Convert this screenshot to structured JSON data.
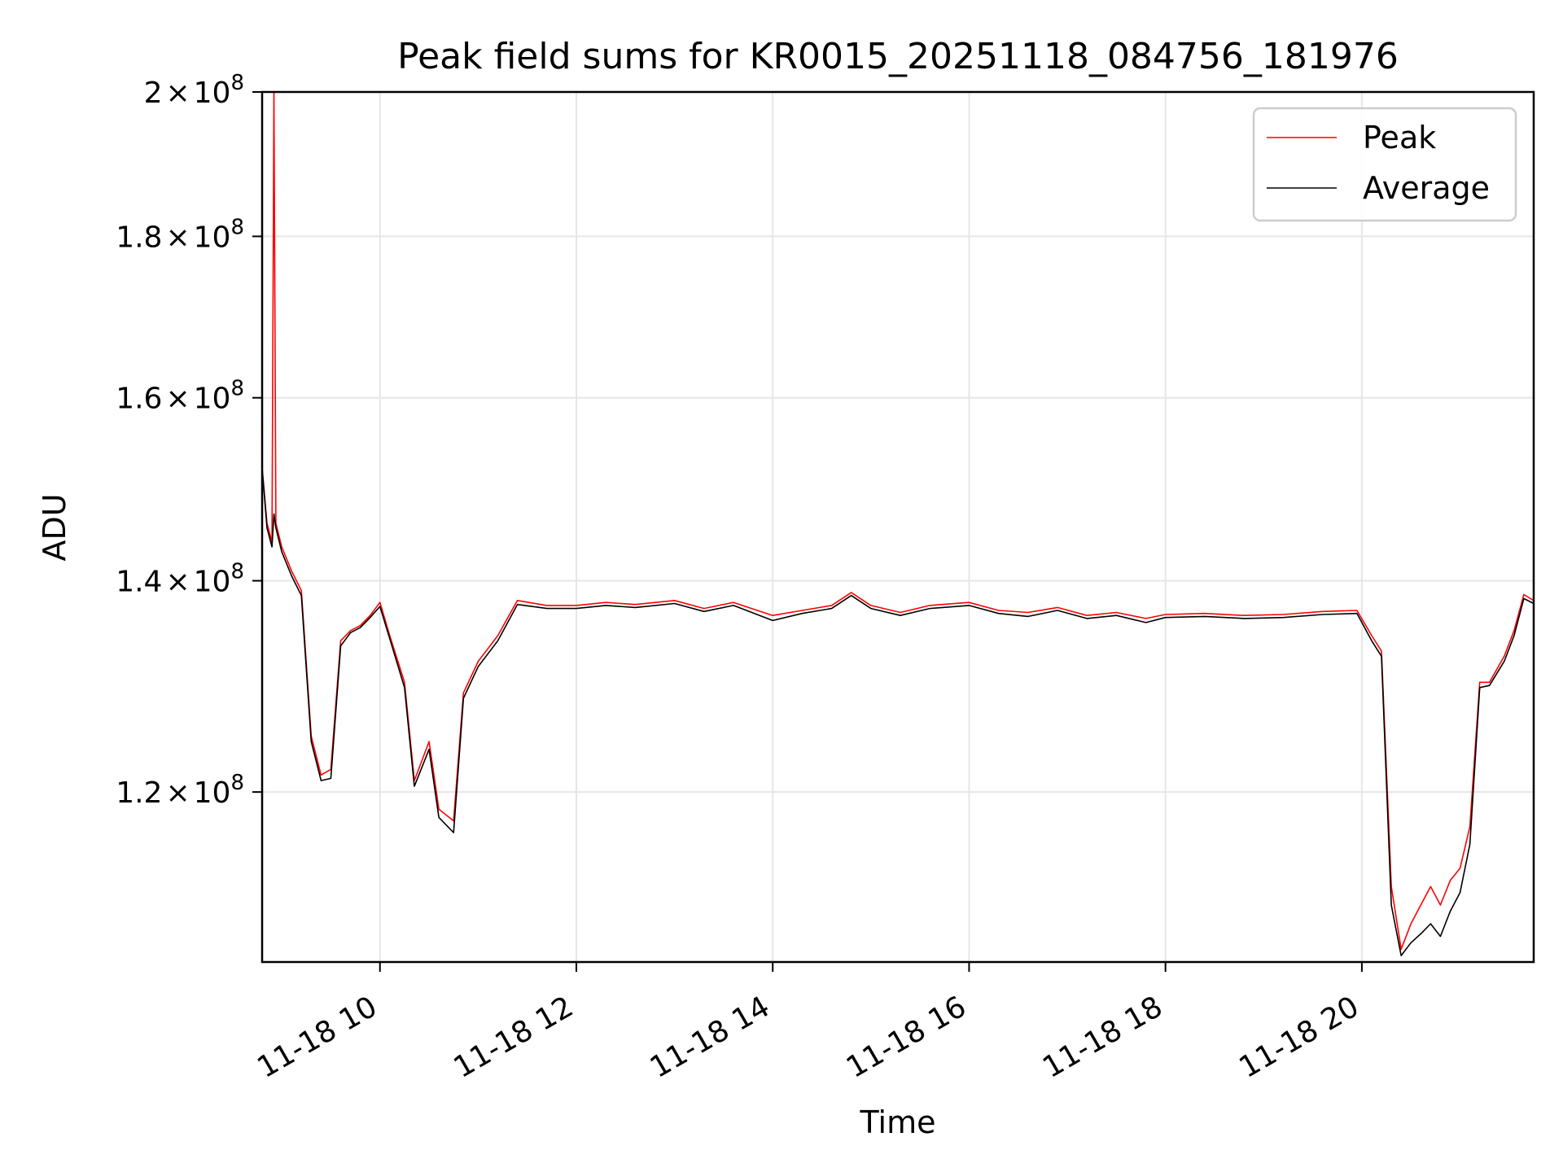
{
  "chart_data": {
    "type": "line",
    "title": "Peak field sums for KR0015_20251118_084756_181976",
    "xlabel": "Time",
    "ylabel": "ADU",
    "y_scale": "log",
    "xlim_hours": [
      8.8,
      21.75
    ],
    "ylim": [
      106000000,
      200000000
    ],
    "x_ticks": [
      {
        "value": 10,
        "label": "11-18 10"
      },
      {
        "value": 12,
        "label": "11-18 12"
      },
      {
        "value": 14,
        "label": "11-18 14"
      },
      {
        "value": 16,
        "label": "11-18 16"
      },
      {
        "value": 18,
        "label": "11-18 18"
      },
      {
        "value": 20,
        "label": "11-18 20"
      }
    ],
    "y_ticks": [
      {
        "value": 120000000,
        "mantissa": "1.2",
        "base": "10",
        "exp": "8"
      },
      {
        "value": 140000000,
        "mantissa": "1.4",
        "base": "10",
        "exp": "8"
      },
      {
        "value": 160000000,
        "mantissa": "1.6",
        "base": "10",
        "exp": "8"
      },
      {
        "value": 180000000,
        "mantissa": "1.8",
        "base": "10",
        "exp": "8"
      },
      {
        "value": 200000000,
        "mantissa": "2",
        "base": "10",
        "exp": "8"
      }
    ],
    "grid": true,
    "legend_position": "top-right",
    "series": [
      {
        "name": "Peak",
        "color": "#ff0000",
        "points": [
          [
            8.8,
            152000000
          ],
          [
            8.85,
            146000000
          ],
          [
            8.9,
            144000000
          ],
          [
            8.92,
            200000000
          ],
          [
            8.94,
            146000000
          ],
          [
            9.0,
            143500000
          ],
          [
            9.1,
            141000000
          ],
          [
            9.2,
            139000000
          ],
          [
            9.3,
            125000000
          ],
          [
            9.4,
            121500000
          ],
          [
            9.5,
            122000000
          ],
          [
            9.6,
            134000000
          ],
          [
            9.7,
            135000000
          ],
          [
            9.8,
            135500000
          ],
          [
            9.9,
            136500000
          ],
          [
            10.0,
            137800000
          ],
          [
            10.1,
            134500000
          ],
          [
            10.25,
            130000000
          ],
          [
            10.35,
            121000000
          ],
          [
            10.5,
            124500000
          ],
          [
            10.6,
            118500000
          ],
          [
            10.75,
            117500000
          ],
          [
            10.85,
            129000000
          ],
          [
            11.0,
            132000000
          ],
          [
            11.2,
            134500000
          ],
          [
            11.4,
            138000000
          ],
          [
            11.7,
            137500000
          ],
          [
            12.0,
            137500000
          ],
          [
            12.3,
            137800000
          ],
          [
            12.6,
            137600000
          ],
          [
            13.0,
            138000000
          ],
          [
            13.3,
            137200000
          ],
          [
            13.6,
            137800000
          ],
          [
            14.0,
            136500000
          ],
          [
            14.3,
            137000000
          ],
          [
            14.6,
            137500000
          ],
          [
            14.8,
            138800000
          ],
          [
            15.0,
            137500000
          ],
          [
            15.3,
            136800000
          ],
          [
            15.6,
            137500000
          ],
          [
            16.0,
            137800000
          ],
          [
            16.3,
            137000000
          ],
          [
            16.6,
            136800000
          ],
          [
            16.9,
            137300000
          ],
          [
            17.2,
            136500000
          ],
          [
            17.5,
            136800000
          ],
          [
            17.8,
            136200000
          ],
          [
            18.0,
            136600000
          ],
          [
            18.4,
            136700000
          ],
          [
            18.8,
            136500000
          ],
          [
            19.2,
            136600000
          ],
          [
            19.6,
            136900000
          ],
          [
            19.95,
            137000000
          ],
          [
            20.1,
            134500000
          ],
          [
            20.2,
            133000000
          ],
          [
            20.3,
            112000000
          ],
          [
            20.4,
            107000000
          ],
          [
            20.5,
            109000000
          ],
          [
            20.6,
            110500000
          ],
          [
            20.7,
            112000000
          ],
          [
            20.8,
            110500000
          ],
          [
            20.9,
            112500000
          ],
          [
            21.0,
            113500000
          ],
          [
            21.1,
            117000000
          ],
          [
            21.2,
            130000000
          ],
          [
            21.3,
            130000000
          ],
          [
            21.45,
            132500000
          ],
          [
            21.55,
            135000000
          ],
          [
            21.65,
            138600000
          ],
          [
            21.75,
            138000000
          ]
        ]
      },
      {
        "name": "Average",
        "color": "#000000",
        "points": [
          [
            8.8,
            152000000
          ],
          [
            8.85,
            145500000
          ],
          [
            8.9,
            143500000
          ],
          [
            8.92,
            147000000
          ],
          [
            8.94,
            145500000
          ],
          [
            9.0,
            143000000
          ],
          [
            9.1,
            140500000
          ],
          [
            9.2,
            138500000
          ],
          [
            9.3,
            124500000
          ],
          [
            9.4,
            121000000
          ],
          [
            9.5,
            121200000
          ],
          [
            9.6,
            133500000
          ],
          [
            9.7,
            134800000
          ],
          [
            9.8,
            135300000
          ],
          [
            9.9,
            136300000
          ],
          [
            10.0,
            137400000
          ],
          [
            10.1,
            134200000
          ],
          [
            10.25,
            129500000
          ],
          [
            10.35,
            120500000
          ],
          [
            10.5,
            123800000
          ],
          [
            10.6,
            117800000
          ],
          [
            10.75,
            116500000
          ],
          [
            10.85,
            128500000
          ],
          [
            11.0,
            131500000
          ],
          [
            11.2,
            134000000
          ],
          [
            11.4,
            137600000
          ],
          [
            11.7,
            137200000
          ],
          [
            12.0,
            137200000
          ],
          [
            12.3,
            137500000
          ],
          [
            12.6,
            137300000
          ],
          [
            13.0,
            137700000
          ],
          [
            13.3,
            136900000
          ],
          [
            13.6,
            137500000
          ],
          [
            14.0,
            136000000
          ],
          [
            14.3,
            136700000
          ],
          [
            14.6,
            137200000
          ],
          [
            14.8,
            138500000
          ],
          [
            15.0,
            137200000
          ],
          [
            15.3,
            136500000
          ],
          [
            15.6,
            137200000
          ],
          [
            16.0,
            137500000
          ],
          [
            16.3,
            136700000
          ],
          [
            16.6,
            136400000
          ],
          [
            16.9,
            137000000
          ],
          [
            17.2,
            136200000
          ],
          [
            17.5,
            136500000
          ],
          [
            17.8,
            135800000
          ],
          [
            18.0,
            136300000
          ],
          [
            18.4,
            136400000
          ],
          [
            18.8,
            136200000
          ],
          [
            19.2,
            136300000
          ],
          [
            19.6,
            136600000
          ],
          [
            19.95,
            136700000
          ],
          [
            20.1,
            134000000
          ],
          [
            20.2,
            132500000
          ],
          [
            20.3,
            110500000
          ],
          [
            20.4,
            106500000
          ],
          [
            20.5,
            107500000
          ],
          [
            20.6,
            108200000
          ],
          [
            20.7,
            109000000
          ],
          [
            20.8,
            108000000
          ],
          [
            20.9,
            110000000
          ],
          [
            21.0,
            111500000
          ],
          [
            21.1,
            115500000
          ],
          [
            21.2,
            129500000
          ],
          [
            21.3,
            129700000
          ],
          [
            21.45,
            132000000
          ],
          [
            21.55,
            134500000
          ],
          [
            21.65,
            138200000
          ],
          [
            21.75,
            137700000
          ]
        ]
      }
    ]
  }
}
